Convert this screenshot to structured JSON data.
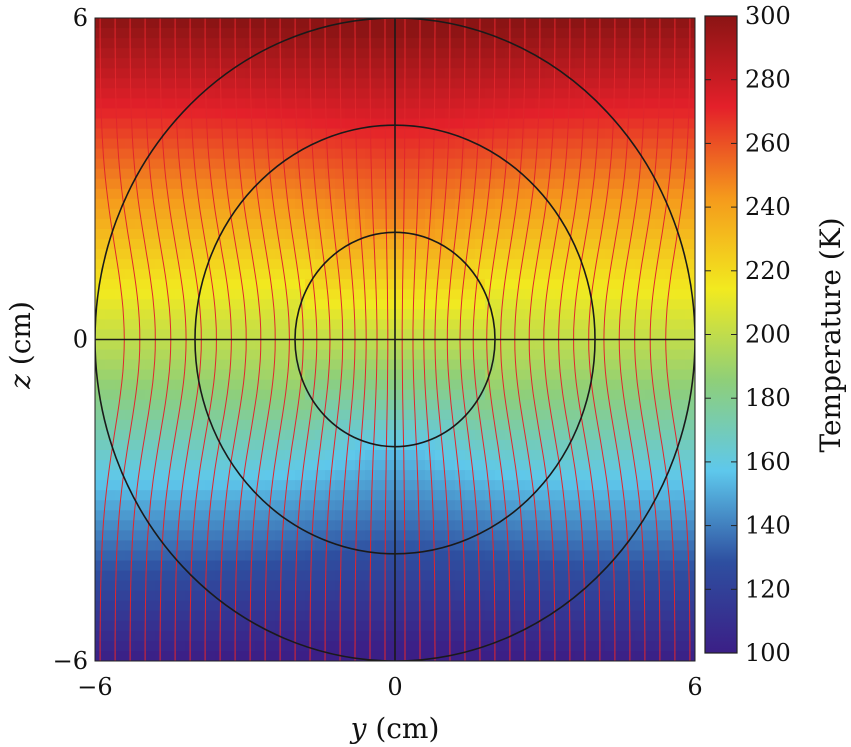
{
  "chart_data": {
    "type": "heatmap",
    "title": "",
    "xlabel": {
      "symbol": "y",
      "unit": "(cm)"
    },
    "ylabel": {
      "symbol": "z",
      "unit": "(cm)"
    },
    "xlim": [
      -6,
      6
    ],
    "ylim": [
      -6,
      6
    ],
    "x_ticks": [
      {
        "value": -6,
        "label": "−6"
      },
      {
        "value": 0,
        "label": "0"
      },
      {
        "value": 6,
        "label": "6"
      }
    ],
    "y_ticks": [
      {
        "value": 6,
        "label": "6"
      },
      {
        "value": 0,
        "label": "0"
      },
      {
        "value": -6,
        "label": "−6"
      }
    ],
    "colorbar": {
      "label": "Temperature (K)",
      "range": [
        100,
        300
      ],
      "ticks": [
        {
          "value": 300,
          "label": "300"
        },
        {
          "value": 280,
          "label": "280"
        },
        {
          "value": 260,
          "label": "260"
        },
        {
          "value": 240,
          "label": "240"
        },
        {
          "value": 220,
          "label": "220"
        },
        {
          "value": 200,
          "label": "200"
        },
        {
          "value": 180,
          "label": "180"
        },
        {
          "value": 160,
          "label": "160"
        },
        {
          "value": 140,
          "label": "140"
        },
        {
          "value": 120,
          "label": "120"
        },
        {
          "value": 100,
          "label": "100"
        }
      ],
      "colors": [
        "#3b1f86",
        "#2e4fa0",
        "#5ec8ec",
        "#8fcf78",
        "#f2ea1f",
        "#f59a1c",
        "#e4202a",
        "#8b1414"
      ]
    },
    "temperature_field": {
      "top_K": 300,
      "bottom_K": 100,
      "center_K": 200,
      "gradient_direction": "decreasing from top to bottom"
    },
    "circles": [
      {
        "center_y_cm": 0,
        "center_z_cm": 0,
        "radius_cm": 2.0
      },
      {
        "center_y_cm": 0,
        "center_z_cm": 0,
        "radius_cm": 4.0
      },
      {
        "center_y_cm": 0,
        "center_z_cm": 0,
        "radius_cm": 6.0
      }
    ],
    "guide_lines": [
      {
        "orientation": "horizontal",
        "z_cm": 0,
        "y_from_cm": -6,
        "y_to_cm": 6
      },
      {
        "orientation": "vertical",
        "y_cm": 0,
        "z_from_cm": -6,
        "z_to_cm": 6
      }
    ],
    "heat_flux_lines": {
      "far_field_y_cm": [
        -5.9,
        -5.6,
        -5.3,
        -5.0,
        -4.7,
        -4.4,
        -4.1,
        -3.8,
        -3.5,
        -3.2,
        -2.9,
        -2.6,
        -2.3,
        -2.0,
        -1.7,
        -1.4,
        -1.1,
        -0.8,
        -0.5,
        -0.2,
        0.2,
        0.5,
        0.8,
        1.1,
        1.4,
        1.7,
        2.0,
        2.3,
        2.6,
        2.9,
        3.2,
        3.5,
        3.8,
        4.1,
        4.4,
        4.7,
        5.0,
        5.3,
        5.6,
        5.9
      ],
      "color": "#e0262c"
    },
    "grid": false,
    "legend": "none"
  }
}
